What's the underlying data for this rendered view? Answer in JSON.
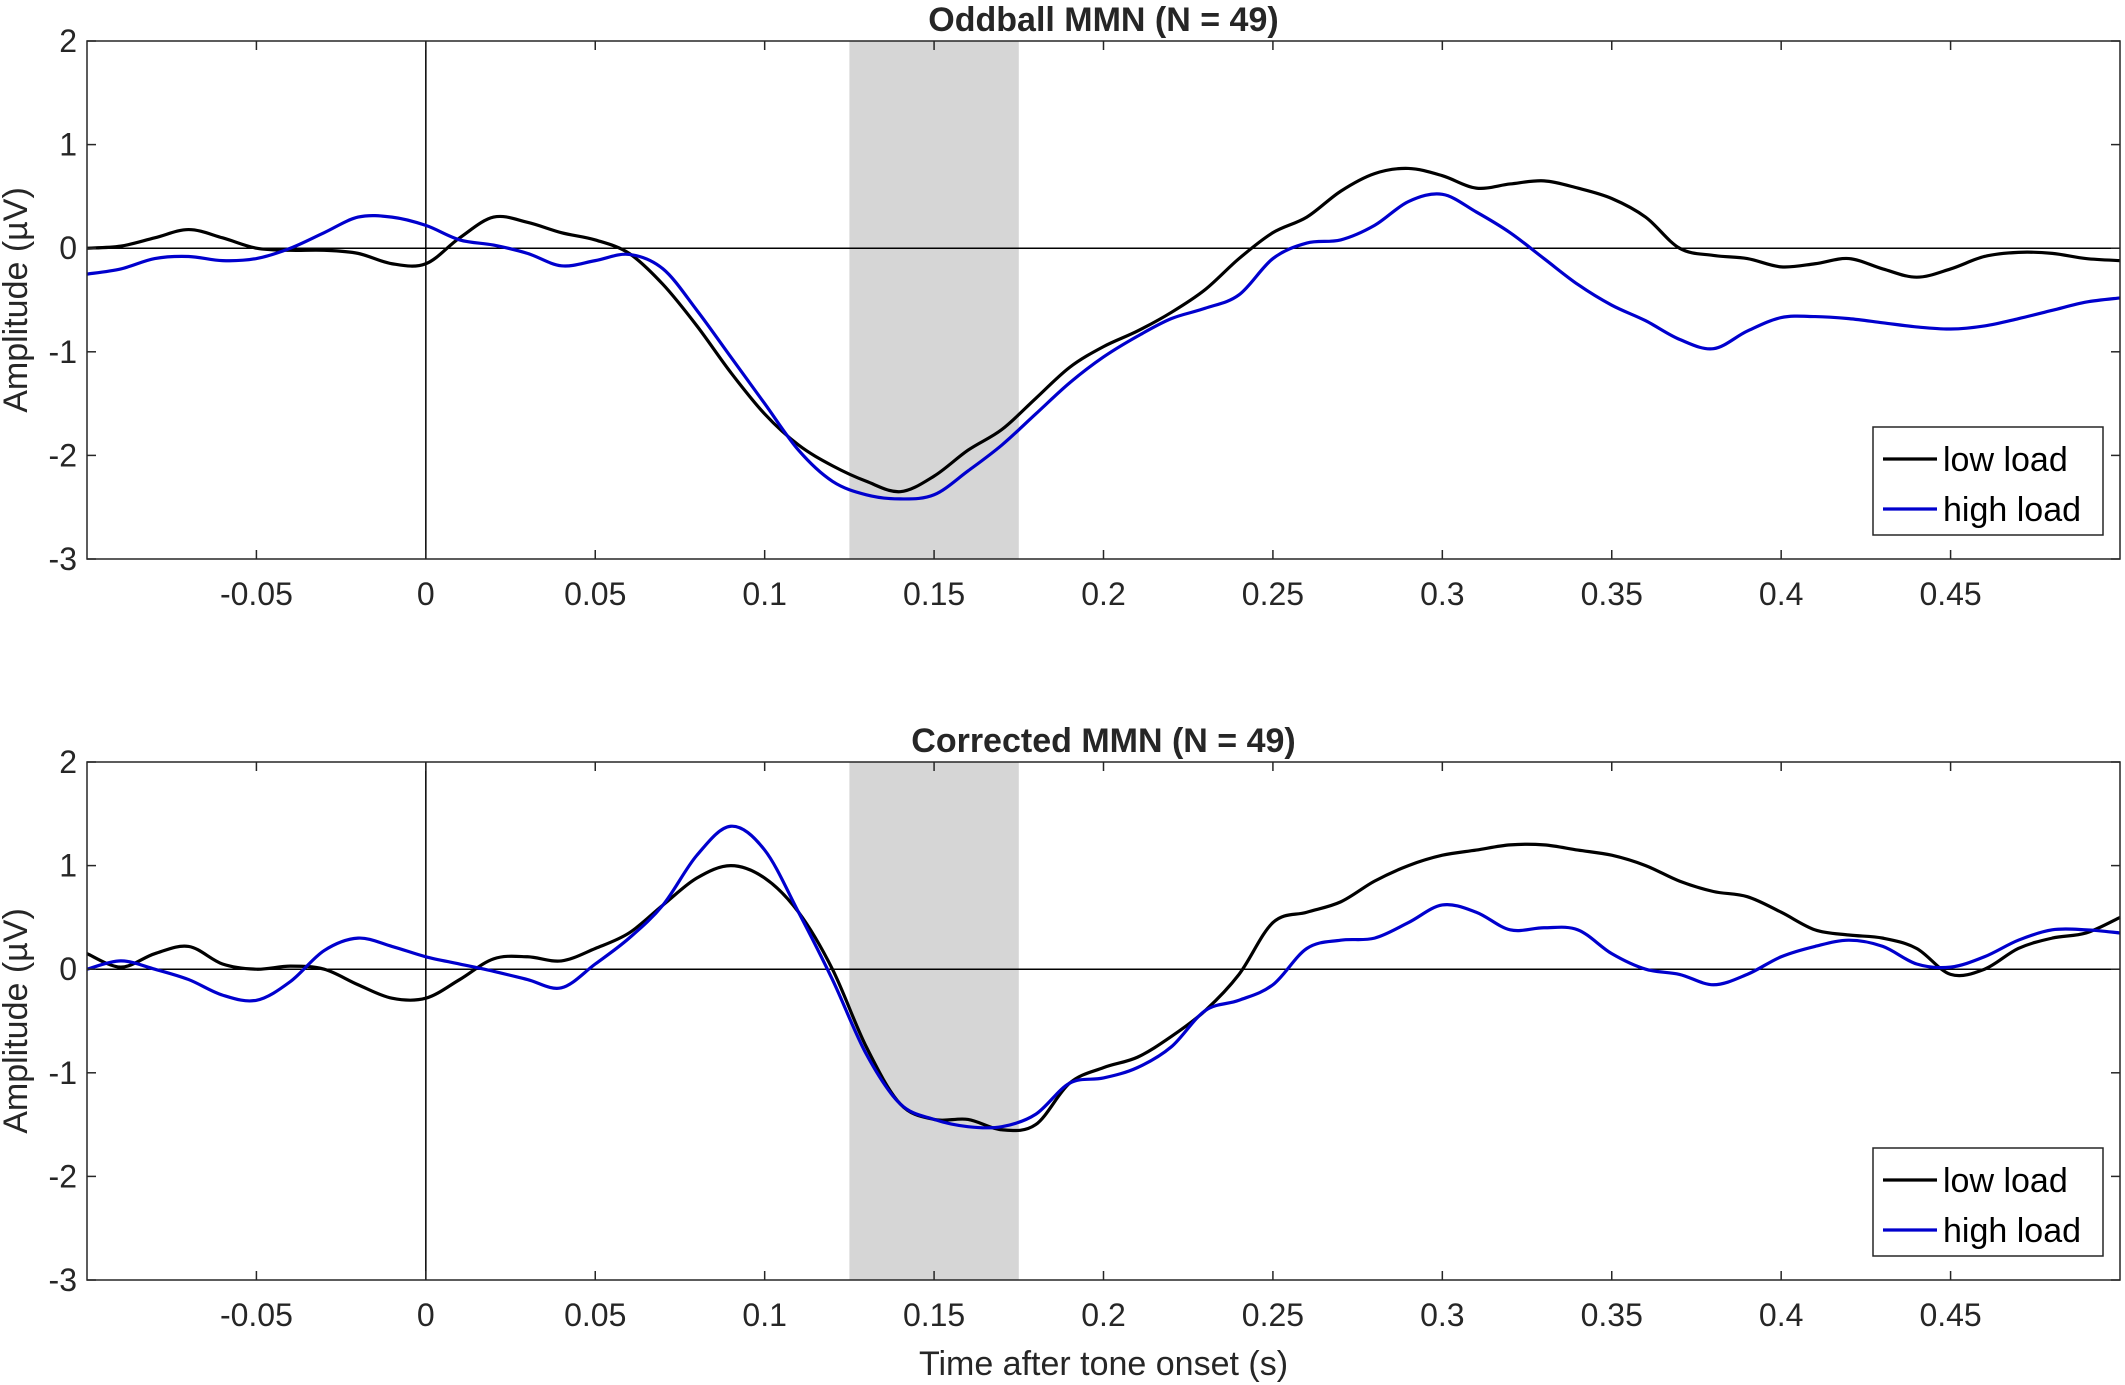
{
  "figure": {
    "xlabel": "Time after tone onset (s)"
  },
  "chart_data": [
    {
      "type": "line",
      "title": "Oddball MMN (N = 49)",
      "xlabel": "",
      "ylabel": "Amplitude (µV)",
      "xlim": [
        -0.1,
        0.5
      ],
      "ylim": [
        -3,
        2
      ],
      "xticks": [
        -0.05,
        0,
        0.05,
        0.1,
        0.15,
        0.2,
        0.25,
        0.3,
        0.35,
        0.4,
        0.45
      ],
      "xtick_labels": [
        "-0.05",
        "0",
        "0.05",
        "0.1",
        "0.15",
        "0.2",
        "0.25",
        "0.3",
        "0.35",
        "0.4",
        "0.45"
      ],
      "yticks": [
        -3,
        -2,
        -1,
        0,
        1,
        2
      ],
      "ytick_labels": [
        "-3",
        "-2",
        "-1",
        "0",
        "1",
        "2"
      ],
      "shaded_window": [
        0.125,
        0.175
      ],
      "shade_color": "#d6d6d6",
      "grid": false,
      "legend_position": "bottom-right",
      "series": [
        {
          "name": "low load",
          "color": "#000000",
          "x": [
            -0.1,
            -0.09,
            -0.08,
            -0.07,
            -0.06,
            -0.05,
            -0.04,
            -0.03,
            -0.02,
            -0.01,
            0,
            0.01,
            0.02,
            0.03,
            0.04,
            0.05,
            0.06,
            0.07,
            0.08,
            0.09,
            0.1,
            0.11,
            0.12,
            0.13,
            0.14,
            0.15,
            0.16,
            0.17,
            0.18,
            0.19,
            0.2,
            0.21,
            0.22,
            0.23,
            0.24,
            0.25,
            0.26,
            0.27,
            0.28,
            0.29,
            0.3,
            0.31,
            0.32,
            0.33,
            0.34,
            0.35,
            0.36,
            0.37,
            0.38,
            0.39,
            0.4,
            0.41,
            0.42,
            0.43,
            0.44,
            0.45,
            0.46,
            0.47,
            0.48,
            0.49,
            0.5
          ],
          "y": [
            0.0,
            0.02,
            0.1,
            0.18,
            0.1,
            0.0,
            -0.02,
            -0.02,
            -0.05,
            -0.15,
            -0.15,
            0.1,
            0.3,
            0.25,
            0.15,
            0.08,
            -0.05,
            -0.35,
            -0.75,
            -1.2,
            -1.6,
            -1.9,
            -2.1,
            -2.25,
            -2.35,
            -2.2,
            -1.95,
            -1.75,
            -1.45,
            -1.15,
            -0.95,
            -0.8,
            -0.62,
            -0.4,
            -0.1,
            0.15,
            0.3,
            0.55,
            0.72,
            0.77,
            0.7,
            0.58,
            0.62,
            0.65,
            0.58,
            0.48,
            0.3,
            0.0,
            -0.07,
            -0.1,
            -0.18,
            -0.15,
            -0.1,
            -0.2,
            -0.28,
            -0.2,
            -0.08,
            -0.04,
            -0.05,
            -0.1,
            -0.12
          ]
        },
        {
          "name": "high load",
          "color": "#0000cd",
          "x": [
            -0.1,
            -0.09,
            -0.08,
            -0.07,
            -0.06,
            -0.05,
            -0.04,
            -0.03,
            -0.02,
            -0.01,
            0,
            0.01,
            0.02,
            0.03,
            0.04,
            0.05,
            0.06,
            0.07,
            0.08,
            0.09,
            0.1,
            0.11,
            0.12,
            0.13,
            0.14,
            0.15,
            0.16,
            0.17,
            0.18,
            0.19,
            0.2,
            0.21,
            0.22,
            0.23,
            0.24,
            0.25,
            0.26,
            0.27,
            0.28,
            0.29,
            0.3,
            0.31,
            0.32,
            0.33,
            0.34,
            0.35,
            0.36,
            0.37,
            0.38,
            0.39,
            0.4,
            0.41,
            0.42,
            0.43,
            0.44,
            0.45,
            0.46,
            0.47,
            0.48,
            0.49,
            0.5
          ],
          "y": [
            -0.25,
            -0.2,
            -0.1,
            -0.08,
            -0.12,
            -0.1,
            0.0,
            0.15,
            0.3,
            0.3,
            0.22,
            0.08,
            0.03,
            -0.05,
            -0.17,
            -0.12,
            -0.06,
            -0.2,
            -0.6,
            -1.05,
            -1.5,
            -1.95,
            -2.25,
            -2.38,
            -2.42,
            -2.38,
            -2.15,
            -1.9,
            -1.6,
            -1.3,
            -1.05,
            -0.85,
            -0.68,
            -0.58,
            -0.45,
            -0.1,
            0.05,
            0.08,
            0.22,
            0.45,
            0.52,
            0.35,
            0.15,
            -0.1,
            -0.35,
            -0.55,
            -0.7,
            -0.88,
            -0.97,
            -0.8,
            -0.67,
            -0.66,
            -0.68,
            -0.72,
            -0.76,
            -0.78,
            -0.75,
            -0.68,
            -0.6,
            -0.52,
            -0.48
          ]
        }
      ]
    },
    {
      "type": "line",
      "title": "Corrected MMN (N = 49)",
      "xlabel": "Time after tone onset (s)",
      "ylabel": "Amplitude (µV)",
      "xlim": [
        -0.1,
        0.5
      ],
      "ylim": [
        -3,
        2
      ],
      "xticks": [
        -0.05,
        0,
        0.05,
        0.1,
        0.15,
        0.2,
        0.25,
        0.3,
        0.35,
        0.4,
        0.45
      ],
      "xtick_labels": [
        "-0.05",
        "0",
        "0.05",
        "0.1",
        "0.15",
        "0.2",
        "0.25",
        "0.3",
        "0.35",
        "0.4",
        "0.45"
      ],
      "yticks": [
        -3,
        -2,
        -1,
        0,
        1,
        2
      ],
      "ytick_labels": [
        "-3",
        "-2",
        "-1",
        "0",
        "1",
        "2"
      ],
      "shaded_window": [
        0.125,
        0.175
      ],
      "shade_color": "#d6d6d6",
      "grid": false,
      "legend_position": "bottom-right",
      "series": [
        {
          "name": "low load",
          "color": "#000000",
          "x": [
            -0.1,
            -0.09,
            -0.08,
            -0.07,
            -0.06,
            -0.05,
            -0.04,
            -0.03,
            -0.02,
            -0.01,
            0,
            0.01,
            0.02,
            0.03,
            0.04,
            0.05,
            0.06,
            0.07,
            0.08,
            0.09,
            0.1,
            0.11,
            0.12,
            0.13,
            0.14,
            0.15,
            0.16,
            0.17,
            0.18,
            0.19,
            0.2,
            0.21,
            0.22,
            0.23,
            0.24,
            0.25,
            0.26,
            0.27,
            0.28,
            0.29,
            0.3,
            0.31,
            0.32,
            0.33,
            0.34,
            0.35,
            0.36,
            0.37,
            0.38,
            0.39,
            0.4,
            0.41,
            0.42,
            0.43,
            0.44,
            0.45,
            0.46,
            0.47,
            0.48,
            0.49,
            0.5
          ],
          "y": [
            0.15,
            0.02,
            0.15,
            0.22,
            0.05,
            0.0,
            0.03,
            0.0,
            -0.15,
            -0.28,
            -0.28,
            -0.1,
            0.1,
            0.12,
            0.08,
            0.2,
            0.35,
            0.62,
            0.88,
            1.0,
            0.88,
            0.55,
            0.0,
            -0.75,
            -1.3,
            -1.45,
            -1.45,
            -1.55,
            -1.5,
            -1.1,
            -0.95,
            -0.85,
            -0.65,
            -0.4,
            -0.05,
            0.45,
            0.55,
            0.65,
            0.85,
            1.0,
            1.1,
            1.15,
            1.2,
            1.2,
            1.15,
            1.1,
            1.0,
            0.85,
            0.75,
            0.7,
            0.55,
            0.38,
            0.33,
            0.3,
            0.2,
            -0.05,
            0.0,
            0.2,
            0.3,
            0.35,
            0.5
          ]
        },
        {
          "name": "high load",
          "color": "#0000cd",
          "x": [
            -0.1,
            -0.09,
            -0.08,
            -0.07,
            -0.06,
            -0.05,
            -0.04,
            -0.03,
            -0.02,
            -0.01,
            0,
            0.01,
            0.02,
            0.03,
            0.04,
            0.05,
            0.06,
            0.07,
            0.08,
            0.09,
            0.1,
            0.11,
            0.12,
            0.13,
            0.14,
            0.15,
            0.16,
            0.17,
            0.18,
            0.19,
            0.2,
            0.21,
            0.22,
            0.23,
            0.24,
            0.25,
            0.26,
            0.27,
            0.28,
            0.29,
            0.3,
            0.31,
            0.32,
            0.33,
            0.34,
            0.35,
            0.36,
            0.37,
            0.38,
            0.39,
            0.4,
            0.41,
            0.42,
            0.43,
            0.44,
            0.45,
            0.46,
            0.47,
            0.48,
            0.49,
            0.5
          ],
          "y": [
            0.0,
            0.08,
            0.0,
            -0.1,
            -0.25,
            -0.3,
            -0.12,
            0.18,
            0.3,
            0.22,
            0.12,
            0.05,
            -0.02,
            -0.1,
            -0.18,
            0.05,
            0.3,
            0.62,
            1.1,
            1.38,
            1.15,
            0.55,
            -0.1,
            -0.82,
            -1.3,
            -1.45,
            -1.52,
            -1.52,
            -1.4,
            -1.1,
            -1.05,
            -0.95,
            -0.75,
            -0.4,
            -0.3,
            -0.15,
            0.2,
            0.28,
            0.3,
            0.45,
            0.62,
            0.55,
            0.38,
            0.4,
            0.38,
            0.15,
            0.0,
            -0.05,
            -0.15,
            -0.05,
            0.12,
            0.22,
            0.28,
            0.22,
            0.05,
            0.02,
            0.12,
            0.28,
            0.38,
            0.38,
            0.35
          ]
        }
      ]
    }
  ]
}
